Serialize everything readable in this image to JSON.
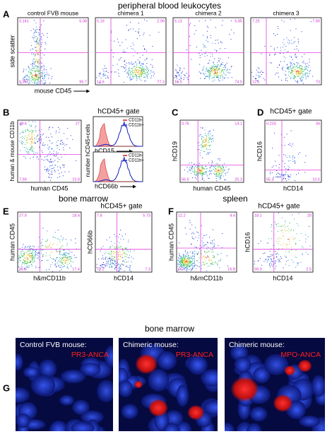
{
  "figure": {
    "headings": [
      "peripheral blood leukocytes",
      "bone marrow",
      "spleen",
      "bone marrow"
    ],
    "letters": [
      "A",
      "B",
      "C",
      "D",
      "E",
      "F",
      "G"
    ],
    "gate_labels": [
      "hCD45+ gate",
      "hCD45+ gate",
      "hCD45+ gate",
      "hCD45+ gate"
    ],
    "scatter_plots": [
      {
        "title": "control FVB mouse",
        "y_label": "side scatter",
        "x_label": "mouse CD45",
        "quadrants": [
          "0.141",
          "5.08",
          "0.957",
          "95.7"
        ]
      },
      {
        "title": "chimera 1",
        "quadrants": [
          "5.19",
          "2.99",
          "14.6",
          "77.3"
        ]
      },
      {
        "title": "chimera 2",
        "quadrants": [
          "5.13",
          "5.85",
          "16.5",
          "74.5"
        ]
      },
      {
        "title": "chimera 3",
        "quadrants": [
          "7.25",
          "7.69",
          "11.6",
          "73"
        ]
      },
      {
        "y_label": "human & mouse CD11b",
        "x_label": "human CD45",
        "quadrants": [
          "49.6",
          "27",
          "7.59",
          "15.8"
        ]
      },
      {
        "y_label": "hCD19",
        "x_label": "human CD45",
        "quadrants": [
          "0.76",
          "14.1",
          "56.5",
          "25.3"
        ]
      },
      {
        "y_label": "hCD16",
        "x_label": "hCD14",
        "quadrants": [
          "0.233",
          "34",
          "55.1",
          "10.5"
        ]
      },
      {
        "y_label": "human CD45",
        "x_label": "h&mCD11b",
        "quadrants": [
          "27.9",
          "18.4",
          "36.3",
          "17.4"
        ]
      },
      {
        "y_label": "hCD66b",
        "x_label": "hCD14",
        "quadrants": [
          "7.8",
          "5.73",
          "79.2",
          "7.3"
        ]
      },
      {
        "y_label": "human CD45",
        "x_label": "h&mCD11b",
        "quadrants": [
          "12.2",
          "4.4",
          "66.7",
          "16.8"
        ]
      },
      {
        "y_label": "hCD16",
        "x_label": "hCD14",
        "quadrants": [
          "18.1",
          "20",
          "59.3",
          "2.5"
        ]
      }
    ],
    "histograms": {
      "y_label": "number hCD45+cells",
      "panels": [
        {
          "x_label": "hCD15",
          "legend": [
            "CD11b-",
            "CD11b+"
          ]
        },
        {
          "x_label": "hCD66b",
          "legend": [
            "CD11b-",
            "CD11b+"
          ]
        }
      ]
    },
    "images": [
      {
        "caption": "Control FVB mouse:",
        "stain": "PR3-ANCA"
      },
      {
        "caption": "Chimeric mouse:",
        "stain": "PR3-ANCA"
      },
      {
        "caption": "Chimeric mouse:",
        "stain": "MPO-ANCA"
      }
    ]
  }
}
